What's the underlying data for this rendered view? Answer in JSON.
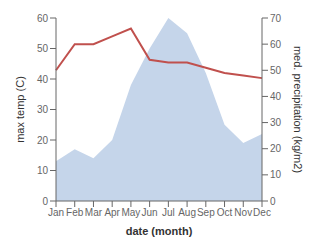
{
  "chart_data": {
    "type": "line",
    "xlabel": "date (month)",
    "ylabel": "max temp (C)",
    "y2label": "med. precipitation (kg/m2)",
    "categories": [
      "Jan",
      "Feb",
      "Mar",
      "Apr",
      "May",
      "Jun",
      "Jul",
      "Aug",
      "Sep",
      "Oct",
      "Nov",
      "Dec"
    ],
    "series": [
      {
        "type": "area",
        "color": "#c5d5ea",
        "values": [
          13,
          17,
          14,
          20,
          38,
          50,
          60,
          55,
          42,
          25,
          19,
          22
        ]
      },
      {
        "type": "line",
        "color": "#c0504d",
        "axis": "y2",
        "values": [
          50,
          60,
          60,
          63,
          66,
          54,
          53,
          53,
          51,
          49,
          48,
          47
        ]
      }
    ],
    "ylim": [
      0,
      60
    ],
    "yticks": [
      0,
      10,
      20,
      30,
      40,
      50,
      60
    ],
    "y2lim": [
      0,
      70
    ],
    "y2ticks": [
      0,
      10,
      20,
      30,
      40,
      50,
      60,
      70
    ],
    "grid": false
  }
}
